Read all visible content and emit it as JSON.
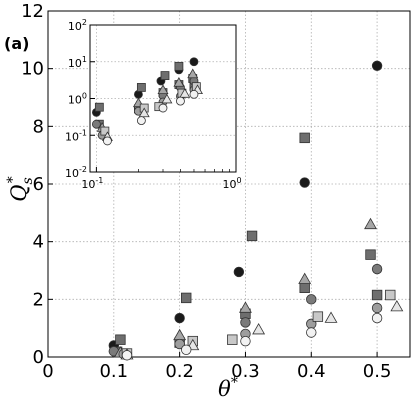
{
  "panel_label": "(a)",
  "chart_data": {
    "type": "scatter",
    "xlabel": "θ",
    "xlabel_sup": "*",
    "ylabel": "Q",
    "ylabel_sub": "s",
    "ylabel_sup": "*",
    "xlim": [
      0,
      0.55
    ],
    "ylim": [
      0,
      12
    ],
    "xticks": [
      0,
      0.1,
      0.2,
      0.3,
      0.4,
      0.5
    ],
    "xtick_labels": [
      "0",
      "0.1",
      "0.2",
      "0.3",
      "0.4",
      "0.5"
    ],
    "yticks": [
      0,
      2,
      4,
      6,
      8,
      10,
      12
    ],
    "ytick_labels": [
      "0",
      "2",
      "4",
      "6",
      "8",
      "10",
      "12"
    ],
    "grid": true,
    "series": [
      {
        "marker": "circle",
        "fill": "#1a1a1a",
        "points": [
          [
            0.1,
            0.4
          ],
          [
            0.2,
            1.35
          ],
          [
            0.29,
            2.95
          ],
          [
            0.39,
            6.05
          ],
          [
            0.5,
            10.1
          ]
        ]
      },
      {
        "marker": "square",
        "fill": "#6e6e6e",
        "points": [
          [
            0.11,
            0.6
          ],
          [
            0.21,
            2.05
          ],
          [
            0.31,
            4.2
          ],
          [
            0.39,
            7.6
          ],
          [
            0.49,
            3.55
          ]
        ]
      },
      {
        "marker": "square",
        "fill": "#6e6e6e",
        "points": [
          [
            0.105,
            0.18
          ],
          [
            0.2,
            0.5
          ],
          [
            0.3,
            1.5
          ],
          [
            0.39,
            2.4
          ],
          [
            0.5,
            2.15
          ]
        ]
      },
      {
        "marker": "circle",
        "fill": "#7a7a7a",
        "points": [
          [
            0.1,
            0.2
          ],
          [
            0.2,
            0.6
          ],
          [
            0.3,
            1.2
          ],
          [
            0.4,
            2.0
          ],
          [
            0.5,
            3.05
          ]
        ]
      },
      {
        "marker": "triangle",
        "fill": "#a6a6a6",
        "points": [
          [
            0.11,
            0.15
          ],
          [
            0.2,
            0.75
          ],
          [
            0.3,
            1.7
          ],
          [
            0.39,
            2.7
          ],
          [
            0.49,
            4.6
          ]
        ]
      },
      {
        "marker": "circle",
        "fill": "#9d9d9d",
        "points": [
          [
            0.115,
            0.1
          ],
          [
            0.2,
            0.45
          ],
          [
            0.3,
            0.8
          ],
          [
            0.4,
            1.15
          ],
          [
            0.5,
            1.7
          ]
        ]
      },
      {
        "marker": "square",
        "fill": "#c8c8c8",
        "points": [
          [
            0.12,
            0.12
          ],
          [
            0.22,
            0.55
          ],
          [
            0.28,
            0.6
          ],
          [
            0.41,
            1.4
          ],
          [
            0.52,
            2.15
          ]
        ]
      },
      {
        "marker": "triangle",
        "fill": "#e6e6e6",
        "points": [
          [
            0.12,
            0.08
          ],
          [
            0.22,
            0.4
          ],
          [
            0.32,
            0.95
          ],
          [
            0.43,
            1.35
          ],
          [
            0.53,
            1.75
          ]
        ]
      },
      {
        "marker": "circle",
        "fill": "#f2f2f2",
        "points": [
          [
            0.12,
            0.06
          ],
          [
            0.21,
            0.25
          ],
          [
            0.3,
            0.55
          ],
          [
            0.4,
            0.85
          ],
          [
            0.5,
            1.35
          ]
        ]
      }
    ],
    "inset": {
      "xscale": "log",
      "yscale": "log",
      "xlim": [
        0.09,
        1.0
      ],
      "ylim": [
        0.01,
        100
      ],
      "xticks": [
        0.1,
        1.0
      ],
      "xtick_labels": [
        {
          "base": "10",
          "exp": "-1"
        },
        {
          "base": "10",
          "exp": "0"
        }
      ],
      "yticks": [
        0.01,
        0.1,
        1,
        10,
        100
      ],
      "ytick_labels": [
        {
          "base": "10",
          "exp": "-2"
        },
        {
          "base": "10",
          "exp": "-1"
        },
        {
          "base": "10",
          "exp": "0"
        },
        {
          "base": "10",
          "exp": "1"
        },
        {
          "base": "10",
          "exp": "2"
        }
      ],
      "series": [
        {
          "marker": "circle",
          "fill": "#1a1a1a",
          "points": [
            [
              0.1,
              0.42
            ],
            [
              0.2,
              1.3
            ],
            [
              0.29,
              3.0
            ],
            [
              0.39,
              6.0
            ],
            [
              0.5,
              10.0
            ]
          ]
        },
        {
          "marker": "square",
          "fill": "#6e6e6e",
          "points": [
            [
              0.105,
              0.58
            ],
            [
              0.21,
              2.0
            ],
            [
              0.31,
              4.2
            ],
            [
              0.39,
              7.5
            ],
            [
              0.49,
              3.5
            ]
          ]
        },
        {
          "marker": "square",
          "fill": "#6e6e6e",
          "points": [
            [
              0.105,
              0.2
            ],
            [
              0.2,
              0.52
            ],
            [
              0.3,
              1.45
            ],
            [
              0.39,
              2.4
            ],
            [
              0.5,
              2.15
            ]
          ]
        },
        {
          "marker": "circle",
          "fill": "#7a7a7a",
          "points": [
            [
              0.1,
              0.2
            ],
            [
              0.2,
              0.6
            ],
            [
              0.3,
              1.2
            ],
            [
              0.4,
              2.0
            ],
            [
              0.5,
              3.0
            ]
          ]
        },
        {
          "marker": "triangle",
          "fill": "#a6a6a6",
          "points": [
            [
              0.11,
              0.16
            ],
            [
              0.2,
              0.75
            ],
            [
              0.3,
              1.7
            ],
            [
              0.39,
              2.7
            ],
            [
              0.49,
              4.6
            ]
          ]
        },
        {
          "marker": "circle",
          "fill": "#9d9d9d",
          "points": [
            [
              0.11,
              0.1
            ],
            [
              0.2,
              0.45
            ],
            [
              0.3,
              0.8
            ],
            [
              0.4,
              1.15
            ],
            [
              0.5,
              1.7
            ]
          ]
        },
        {
          "marker": "square",
          "fill": "#c8c8c8",
          "points": [
            [
              0.115,
              0.13
            ],
            [
              0.22,
              0.55
            ],
            [
              0.28,
              0.6
            ],
            [
              0.41,
              1.4
            ],
            [
              0.52,
              2.1
            ]
          ]
        },
        {
          "marker": "triangle",
          "fill": "#e6e6e6",
          "points": [
            [
              0.12,
              0.09
            ],
            [
              0.22,
              0.4
            ],
            [
              0.32,
              0.95
            ],
            [
              0.43,
              1.35
            ],
            [
              0.53,
              1.7
            ]
          ]
        },
        {
          "marker": "circle",
          "fill": "#f2f2f2",
          "points": [
            [
              0.12,
              0.07
            ],
            [
              0.21,
              0.25
            ],
            [
              0.3,
              0.55
            ],
            [
              0.4,
              0.85
            ],
            [
              0.5,
              1.3
            ]
          ]
        }
      ]
    }
  }
}
